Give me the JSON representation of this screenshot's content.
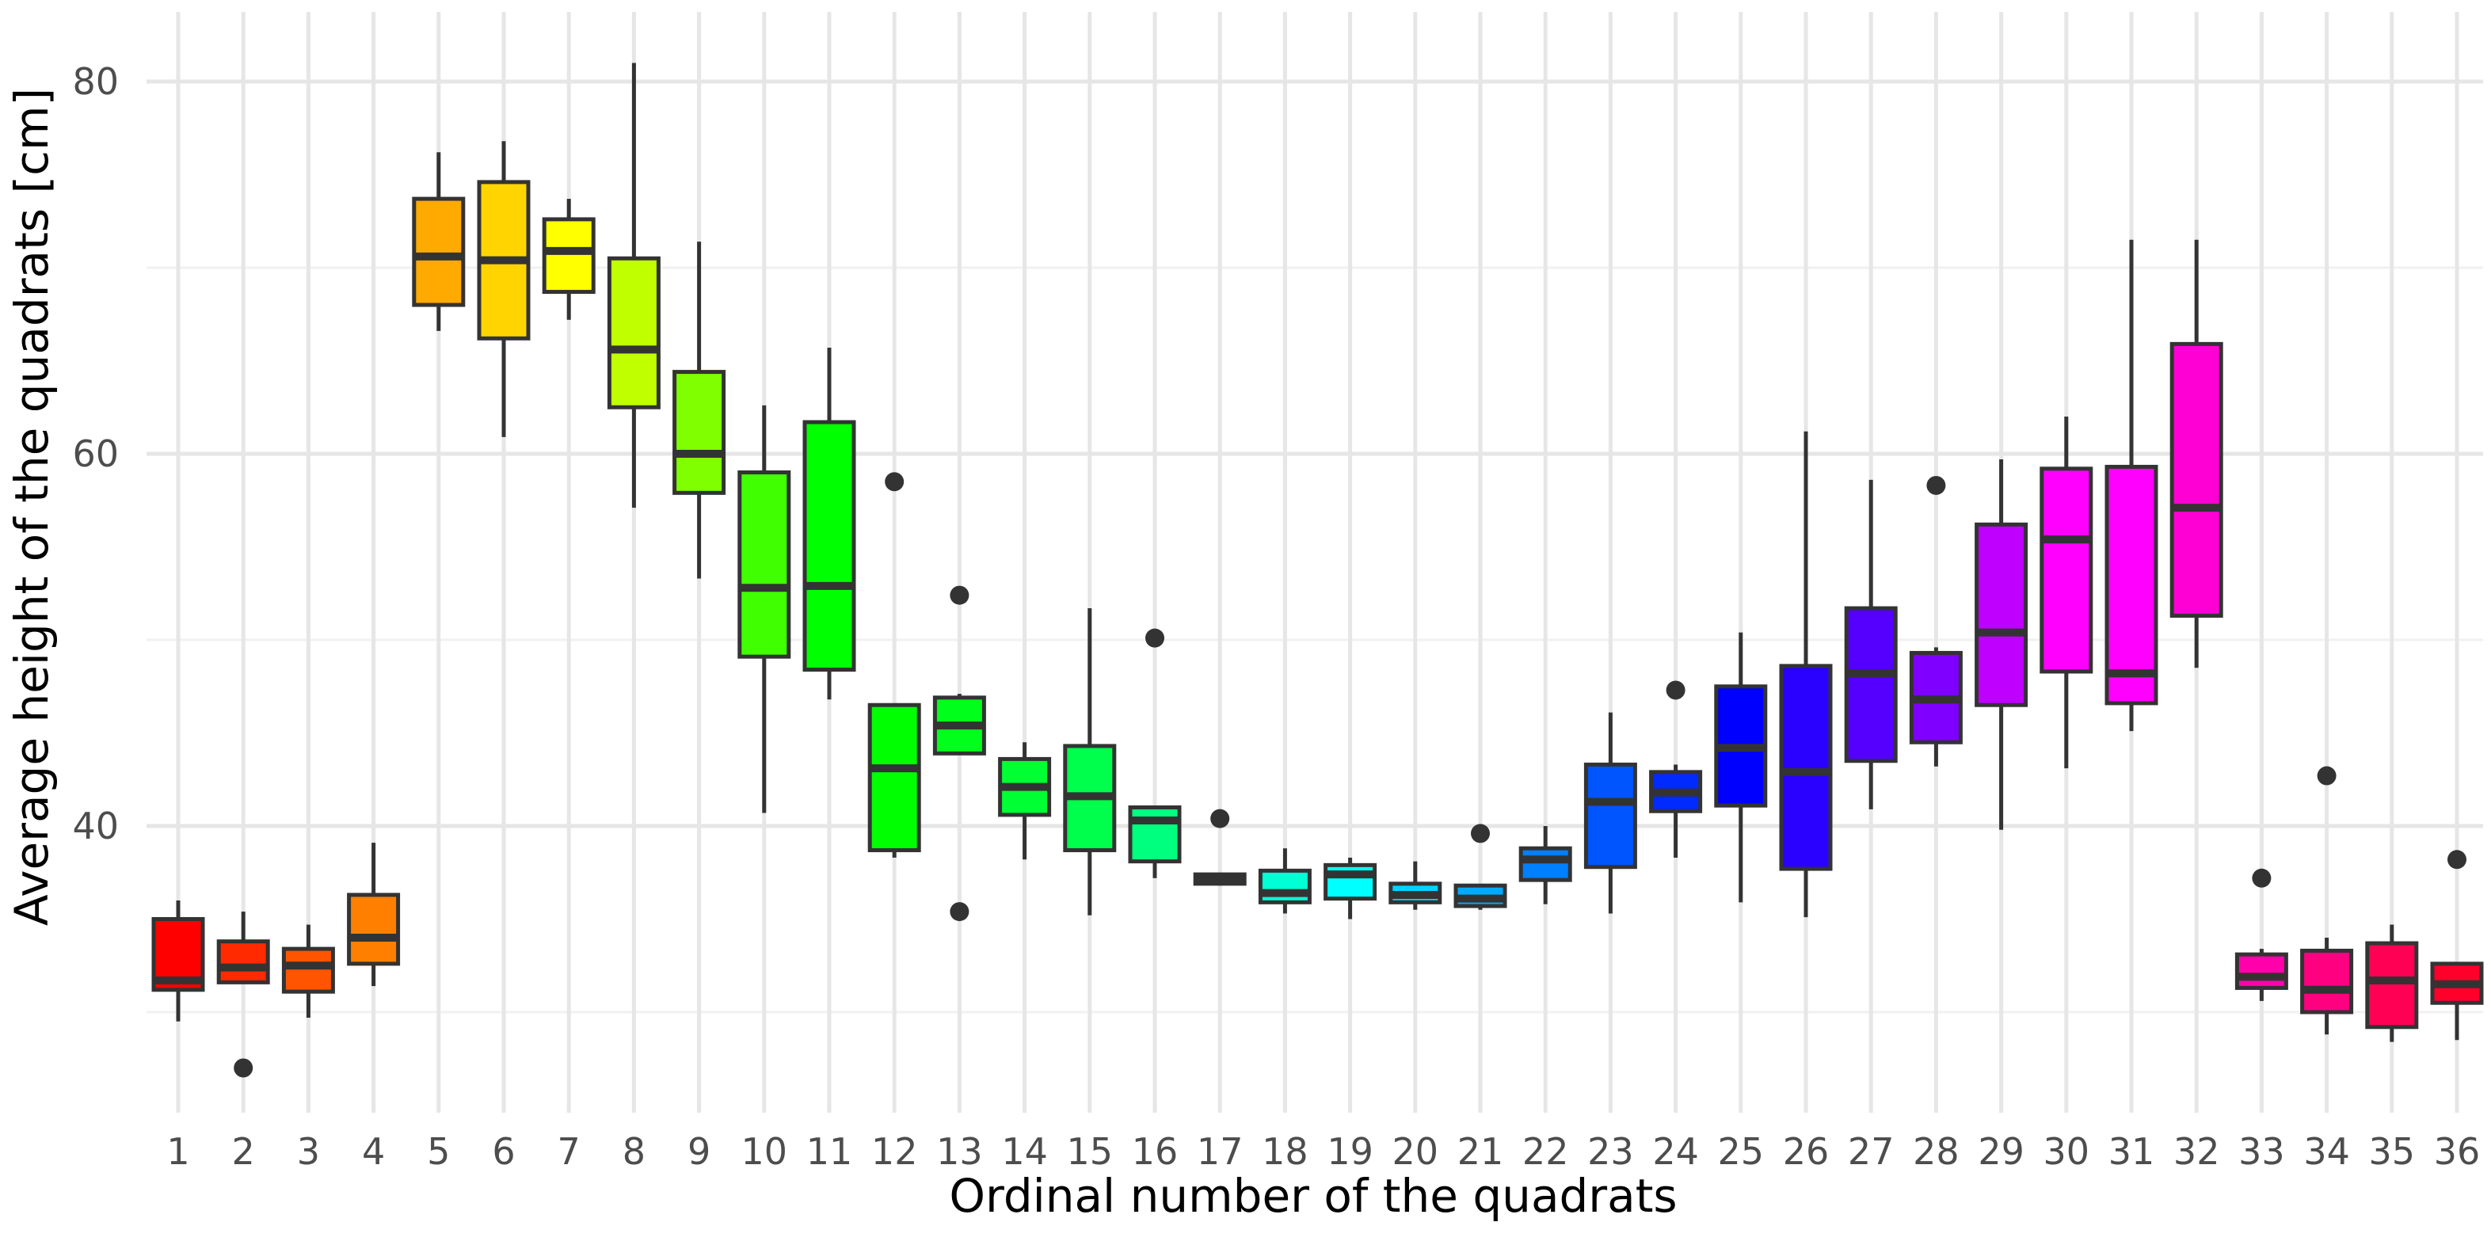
{
  "chart_data": {
    "type": "boxplot",
    "title": "",
    "xlabel": "Ordinal number of the quadrats",
    "ylabel": "Average height of the quadrats [cm]",
    "ylim": [
      26,
      84
    ],
    "y_ticks": [
      40,
      60,
      80
    ],
    "grid": true,
    "legend": "none",
    "categories": [
      "1",
      "2",
      "3",
      "4",
      "5",
      "6",
      "7",
      "8",
      "9",
      "10",
      "11",
      "12",
      "13",
      "14",
      "15",
      "16",
      "17",
      "18",
      "19",
      "20",
      "21",
      "22",
      "23",
      "24",
      "25",
      "26",
      "27",
      "28",
      "29",
      "30",
      "31",
      "32",
      "33",
      "34",
      "35",
      "36"
    ],
    "boxes": [
      {
        "category": "1",
        "color": "#FF0000",
        "whisker_low": 29.5,
        "q1": 31.2,
        "median": 31.7,
        "q3": 35.0,
        "whisker_high": 36.0,
        "outliers": []
      },
      {
        "category": "2",
        "color": "#FF2A00",
        "whisker_low": 31.6,
        "q1": 31.6,
        "median": 32.4,
        "q3": 33.8,
        "whisker_high": 35.4,
        "outliers": [
          27.0
        ]
      },
      {
        "category": "3",
        "color": "#FF5500",
        "whisker_low": 29.7,
        "q1": 31.1,
        "median": 32.5,
        "q3": 33.4,
        "whisker_high": 34.7,
        "outliers": []
      },
      {
        "category": "4",
        "color": "#FF7F00",
        "whisker_low": 31.4,
        "q1": 32.6,
        "median": 34.0,
        "q3": 36.3,
        "whisker_high": 39.1,
        "outliers": []
      },
      {
        "category": "5",
        "color": "#FFAA00",
        "whisker_low": 66.6,
        "q1": 68.0,
        "median": 70.6,
        "q3": 73.7,
        "whisker_high": 76.2,
        "outliers": []
      },
      {
        "category": "6",
        "color": "#FFD400",
        "whisker_low": 60.9,
        "q1": 66.2,
        "median": 70.4,
        "q3": 74.6,
        "whisker_high": 76.8,
        "outliers": []
      },
      {
        "category": "7",
        "color": "#FFFF00",
        "whisker_low": 67.2,
        "q1": 68.7,
        "median": 70.9,
        "q3": 72.6,
        "whisker_high": 73.7,
        "outliers": []
      },
      {
        "category": "8",
        "color": "#BFFF00",
        "whisker_low": 57.1,
        "q1": 62.5,
        "median": 65.6,
        "q3": 70.5,
        "whisker_high": 81.0,
        "outliers": []
      },
      {
        "category": "9",
        "color": "#7FFF00",
        "whisker_low": 53.3,
        "q1": 57.9,
        "median": 60.0,
        "q3": 64.4,
        "whisker_high": 71.4,
        "outliers": []
      },
      {
        "category": "10",
        "color": "#3FFF00",
        "whisker_low": 40.7,
        "q1": 49.1,
        "median": 52.8,
        "q3": 59.0,
        "whisker_high": 62.6,
        "outliers": []
      },
      {
        "category": "11",
        "color": "#00FF00",
        "whisker_low": 46.8,
        "q1": 48.4,
        "median": 52.9,
        "q3": 61.7,
        "whisker_high": 65.7,
        "outliers": []
      },
      {
        "category": "12",
        "color": "#00FF00",
        "whisker_low": 38.3,
        "q1": 38.7,
        "median": 43.1,
        "q3": 46.5,
        "whisker_high": 46.5,
        "outliers": [
          58.5
        ]
      },
      {
        "category": "13",
        "color": "#00FF1A",
        "whisker_low": 43.9,
        "q1": 43.9,
        "median": 45.4,
        "q3": 46.9,
        "whisker_high": 47.1,
        "outliers": [
          52.4,
          35.4
        ]
      },
      {
        "category": "14",
        "color": "#00FF33",
        "whisker_low": 38.2,
        "q1": 40.6,
        "median": 42.1,
        "q3": 43.6,
        "whisker_high": 44.5,
        "outliers": []
      },
      {
        "category": "15",
        "color": "#00FF4C",
        "whisker_low": 35.2,
        "q1": 38.7,
        "median": 41.6,
        "q3": 44.3,
        "whisker_high": 51.7,
        "outliers": []
      },
      {
        "category": "16",
        "color": "#00FF7F",
        "whisker_low": 37.2,
        "q1": 38.1,
        "median": 40.3,
        "q3": 41.0,
        "whisker_high": 41.0,
        "outliers": [
          50.1
        ]
      },
      {
        "category": "17",
        "color": "#00FFAA",
        "whisker_low": 36.8,
        "q1": 36.9,
        "median": 37.1,
        "q3": 37.4,
        "whisker_high": 37.4,
        "outliers": [
          40.4
        ]
      },
      {
        "category": "18",
        "color": "#00FFD4",
        "whisker_low": 35.3,
        "q1": 35.9,
        "median": 36.4,
        "q3": 37.6,
        "whisker_high": 38.8,
        "outliers": []
      },
      {
        "category": "19",
        "color": "#00FFFF",
        "whisker_low": 35.0,
        "q1": 36.1,
        "median": 37.4,
        "q3": 37.9,
        "whisker_high": 38.3,
        "outliers": []
      },
      {
        "category": "20",
        "color": "#00D4FF",
        "whisker_low": 35.5,
        "q1": 35.9,
        "median": 36.3,
        "q3": 36.9,
        "whisker_high": 38.1,
        "outliers": []
      },
      {
        "category": "21",
        "color": "#00AAFF",
        "whisker_low": 35.5,
        "q1": 35.7,
        "median": 36.1,
        "q3": 36.8,
        "whisker_high": 36.8,
        "outliers": [
          39.6
        ]
      },
      {
        "category": "22",
        "color": "#007FFF",
        "whisker_low": 35.8,
        "q1": 37.1,
        "median": 38.2,
        "q3": 38.8,
        "whisker_high": 40.0,
        "outliers": []
      },
      {
        "category": "23",
        "color": "#0055FF",
        "whisker_low": 35.3,
        "q1": 37.8,
        "median": 41.3,
        "q3": 43.3,
        "whisker_high": 46.1,
        "outliers": []
      },
      {
        "category": "24",
        "color": "#002AFF",
        "whisker_low": 38.3,
        "q1": 40.8,
        "median": 41.8,
        "q3": 42.9,
        "whisker_high": 43.3,
        "outliers": [
          47.3
        ]
      },
      {
        "category": "25",
        "color": "#0000FF",
        "whisker_low": 35.9,
        "q1": 41.1,
        "median": 44.2,
        "q3": 47.5,
        "whisker_high": 50.4,
        "outliers": []
      },
      {
        "category": "26",
        "color": "#2A00FF",
        "whisker_low": 35.1,
        "q1": 37.7,
        "median": 42.9,
        "q3": 48.6,
        "whisker_high": 61.2,
        "outliers": []
      },
      {
        "category": "27",
        "color": "#5500FF",
        "whisker_low": 40.9,
        "q1": 43.5,
        "median": 48.2,
        "q3": 51.7,
        "whisker_high": 58.6,
        "outliers": []
      },
      {
        "category": "28",
        "color": "#7F00FF",
        "whisker_low": 43.2,
        "q1": 44.5,
        "median": 46.8,
        "q3": 49.3,
        "whisker_high": 49.6,
        "outliers": [
          58.3
        ]
      },
      {
        "category": "29",
        "color": "#BF00FF",
        "whisker_low": 39.8,
        "q1": 46.5,
        "median": 50.4,
        "q3": 56.2,
        "whisker_high": 59.7,
        "outliers": []
      },
      {
        "category": "30",
        "color": "#FF00FF",
        "whisker_low": 43.1,
        "q1": 48.3,
        "median": 55.4,
        "q3": 59.2,
        "whisker_high": 62.0,
        "outliers": []
      },
      {
        "category": "31",
        "color": "#FF00FF",
        "whisker_low": 45.1,
        "q1": 46.6,
        "median": 48.2,
        "q3": 59.3,
        "whisker_high": 71.5,
        "outliers": []
      },
      {
        "category": "32",
        "color": "#FF00D4",
        "whisker_low": 48.5,
        "q1": 51.3,
        "median": 57.1,
        "q3": 65.9,
        "whisker_high": 71.5,
        "outliers": []
      },
      {
        "category": "33",
        "color": "#FF00AA",
        "whisker_low": 30.6,
        "q1": 31.3,
        "median": 31.9,
        "q3": 33.1,
        "whisker_high": 33.4,
        "outliers": [
          37.2
        ]
      },
      {
        "category": "34",
        "color": "#FF0080",
        "whisker_low": 28.8,
        "q1": 30.0,
        "median": 31.2,
        "q3": 33.3,
        "whisker_high": 34.0,
        "outliers": [
          42.7
        ]
      },
      {
        "category": "35",
        "color": "#FF0055",
        "whisker_low": 28.4,
        "q1": 29.2,
        "median": 31.7,
        "q3": 33.7,
        "whisker_high": 34.7,
        "outliers": []
      },
      {
        "category": "36",
        "color": "#FF002A",
        "whisker_low": 28.5,
        "q1": 30.5,
        "median": 31.5,
        "q3": 32.6,
        "whisker_high": 32.6,
        "outliers": [
          38.2
        ]
      }
    ]
  }
}
